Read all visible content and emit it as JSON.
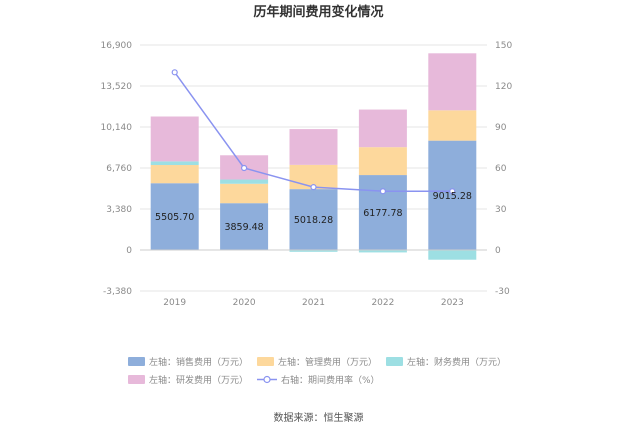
{
  "chart_data": {
    "type": "bar",
    "title": "历年期间费用变化情况",
    "categories": [
      "2019",
      "2020",
      "2021",
      "2022",
      "2023"
    ],
    "left_axis": {
      "ylim": [
        -3380,
        16900
      ],
      "ticks": [
        "-3,380",
        "0",
        "3,380",
        "6,760",
        "10,140",
        "13,520",
        "16,900"
      ]
    },
    "right_axis": {
      "ylim": [
        -30,
        150
      ],
      "ticks": [
        "-30",
        "0",
        "30",
        "60",
        "90",
        "120",
        "150"
      ]
    },
    "series": [
      {
        "name": "左轴：销售费用（万元）",
        "type": "stacked-bar",
        "axis": "left",
        "color": "#8eaedb",
        "values": [
          5505.7,
          3859.48,
          5018.28,
          6177.78,
          9015.28
        ],
        "labels": [
          "5505.70",
          "3859.48",
          "5018.28",
          "6177.78",
          "9015.28"
        ]
      },
      {
        "name": "左轴：管理费用（万元）",
        "type": "stacked-bar",
        "axis": "left",
        "color": "#fdd89c",
        "values": [
          1500,
          1600,
          2000,
          2300,
          2500
        ]
      },
      {
        "name": "左轴：财务费用（万元）",
        "type": "stacked-bar",
        "axis": "left",
        "color": "#9ddfe3",
        "values": [
          300,
          350,
          -150,
          -200,
          -800
        ]
      },
      {
        "name": "左轴：研发费用（万元）",
        "type": "stacked-bar",
        "axis": "left",
        "color": "#e7b9da",
        "values": [
          3700,
          2000,
          2950,
          3100,
          4700
        ]
      },
      {
        "name": "右轴：期间费用率（%）",
        "type": "line",
        "axis": "right",
        "color": "#8a93f0",
        "values": [
          130,
          60,
          46,
          43,
          43
        ]
      }
    ],
    "grid": true,
    "legend_position": "bottom"
  },
  "source": "数据来源：恒生聚源"
}
